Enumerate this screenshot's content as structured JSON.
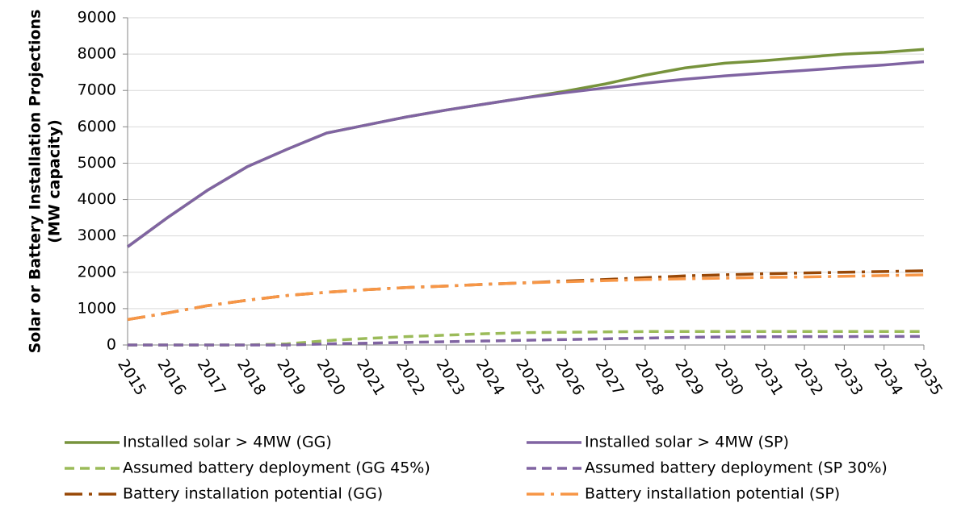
{
  "chart_data": {
    "type": "line",
    "ylabel": [
      "Solar or Battery Installation Projections",
      "(MW capacity)"
    ],
    "categories": [
      "2015",
      "2016",
      "2017",
      "2018",
      "2019",
      "2020",
      "2021",
      "2022",
      "2023",
      "2024",
      "2025",
      "2026",
      "2027",
      "2028",
      "2029",
      "2030",
      "2031",
      "2032",
      "2033",
      "2034",
      "2035"
    ],
    "ylim": [
      0,
      9000
    ],
    "yticks": [
      0,
      1000,
      2000,
      3000,
      4000,
      5000,
      6000,
      7000,
      8000,
      9000
    ],
    "grid": true,
    "series": [
      {
        "name": "Installed solar > 4MW (GG)",
        "color": "#77933c",
        "dash": "solid",
        "values": [
          2700,
          3500,
          4250,
          4900,
          5380,
          5830,
          6050,
          6270,
          6460,
          6630,
          6800,
          6980,
          7180,
          7420,
          7620,
          7750,
          7820,
          7910,
          8000,
          8050,
          8130
        ]
      },
      {
        "name": "Installed solar > 4MW (SP)",
        "color": "#8064a2",
        "dash": "solid",
        "values": [
          2700,
          3500,
          4250,
          4900,
          5380,
          5830,
          6050,
          6270,
          6460,
          6630,
          6800,
          6940,
          7070,
          7200,
          7310,
          7400,
          7480,
          7550,
          7630,
          7700,
          7790
        ]
      },
      {
        "name": "Assumed battery deployment (GG 45%)",
        "color": "#9bbb59",
        "dash": "dash",
        "values": [
          0,
          0,
          0,
          0,
          30,
          120,
          180,
          230,
          270,
          310,
          340,
          350,
          360,
          370,
          370,
          370,
          370,
          370,
          370,
          370,
          370
        ]
      },
      {
        "name": "Assumed battery deployment (SP 30%)",
        "color": "#8064a2",
        "dash": "dash",
        "values": [
          0,
          0,
          0,
          0,
          0,
          30,
          50,
          70,
          90,
          110,
          130,
          150,
          170,
          190,
          210,
          220,
          225,
          230,
          230,
          235,
          235
        ]
      },
      {
        "name": "Battery installation potential (GG)",
        "color": "#984807",
        "dash": "dashdot",
        "values": [
          700,
          880,
          1080,
          1230,
          1360,
          1450,
          1520,
          1580,
          1620,
          1670,
          1710,
          1760,
          1800,
          1850,
          1900,
          1930,
          1960,
          1980,
          2000,
          2020,
          2040
        ]
      },
      {
        "name": "Battery installation potential (SP)",
        "color": "#f79646",
        "dash": "dashdot",
        "values": [
          700,
          880,
          1080,
          1230,
          1360,
          1450,
          1520,
          1580,
          1620,
          1670,
          1710,
          1740,
          1770,
          1800,
          1820,
          1840,
          1860,
          1870,
          1890,
          1910,
          1930
        ]
      }
    ]
  }
}
